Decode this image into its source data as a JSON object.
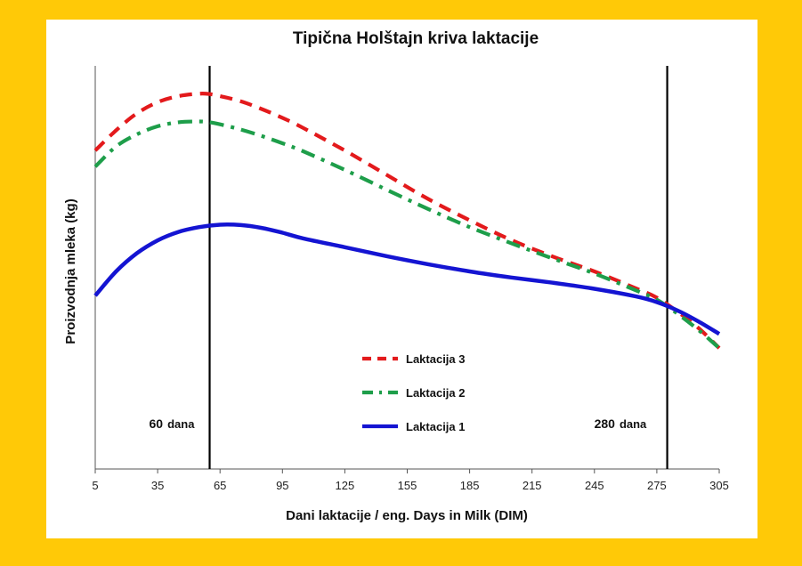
{
  "chart_data": {
    "type": "line",
    "title": "Tipična Holštajn kriva laktacije",
    "xlabel": "Dani laktacije / eng. Days in Milk (DIM)",
    "ylabel": "Proizvodnja mleka (kg)",
    "xlim": [
      5,
      305
    ],
    "xticks": [
      5,
      35,
      65,
      95,
      125,
      155,
      185,
      215,
      245,
      275,
      305
    ],
    "yticks_shown": false,
    "grid": false,
    "legend_position": "center",
    "series": [
      {
        "name": "Laktacija 3",
        "style": "dashed",
        "color": "#E31A1C",
        "x": [
          5,
          15,
          25,
          35,
          45,
          55,
          60,
          65,
          75,
          85,
          95,
          105,
          125,
          145,
          165,
          185,
          205,
          225,
          245,
          265,
          275,
          285,
          295,
          305
        ],
        "y": [
          0.79,
          0.84,
          0.882,
          0.91,
          0.925,
          0.931,
          0.93,
          0.925,
          0.912,
          0.893,
          0.871,
          0.846,
          0.79,
          0.73,
          0.67,
          0.617,
          0.568,
          0.527,
          0.49,
          0.448,
          0.425,
          0.39,
          0.35,
          0.3
        ]
      },
      {
        "name": "Laktacija 2",
        "style": "dashdot",
        "color": "#1E9E4A",
        "x": [
          5,
          15,
          25,
          35,
          45,
          55,
          60,
          65,
          75,
          85,
          95,
          105,
          125,
          145,
          165,
          185,
          205,
          225,
          245,
          265,
          275,
          285,
          295,
          305
        ],
        "y": [
          0.75,
          0.8,
          0.83,
          0.85,
          0.86,
          0.862,
          0.86,
          0.855,
          0.842,
          0.826,
          0.808,
          0.788,
          0.742,
          0.693,
          0.645,
          0.6,
          0.56,
          0.522,
          0.485,
          0.443,
          0.42,
          0.385,
          0.345,
          0.3
        ]
      },
      {
        "name": "Laktacija 1",
        "style": "solid",
        "color": "#1414D2",
        "x": [
          5,
          15,
          25,
          35,
          45,
          55,
          65,
          75,
          85,
          95,
          105,
          125,
          145,
          165,
          185,
          205,
          225,
          245,
          265,
          275,
          285,
          295,
          305
        ],
        "y": [
          0.43,
          0.49,
          0.535,
          0.567,
          0.588,
          0.6,
          0.606,
          0.605,
          0.598,
          0.586,
          0.572,
          0.55,
          0.528,
          0.508,
          0.49,
          0.475,
          0.462,
          0.447,
          0.428,
          0.414,
          0.393,
          0.366,
          0.335
        ]
      }
    ],
    "annotations": [
      {
        "label_num": "60",
        "label_text": "dana",
        "x": 60
      },
      {
        "label_num": "280",
        "label_text": "dana",
        "x": 280
      }
    ]
  }
}
